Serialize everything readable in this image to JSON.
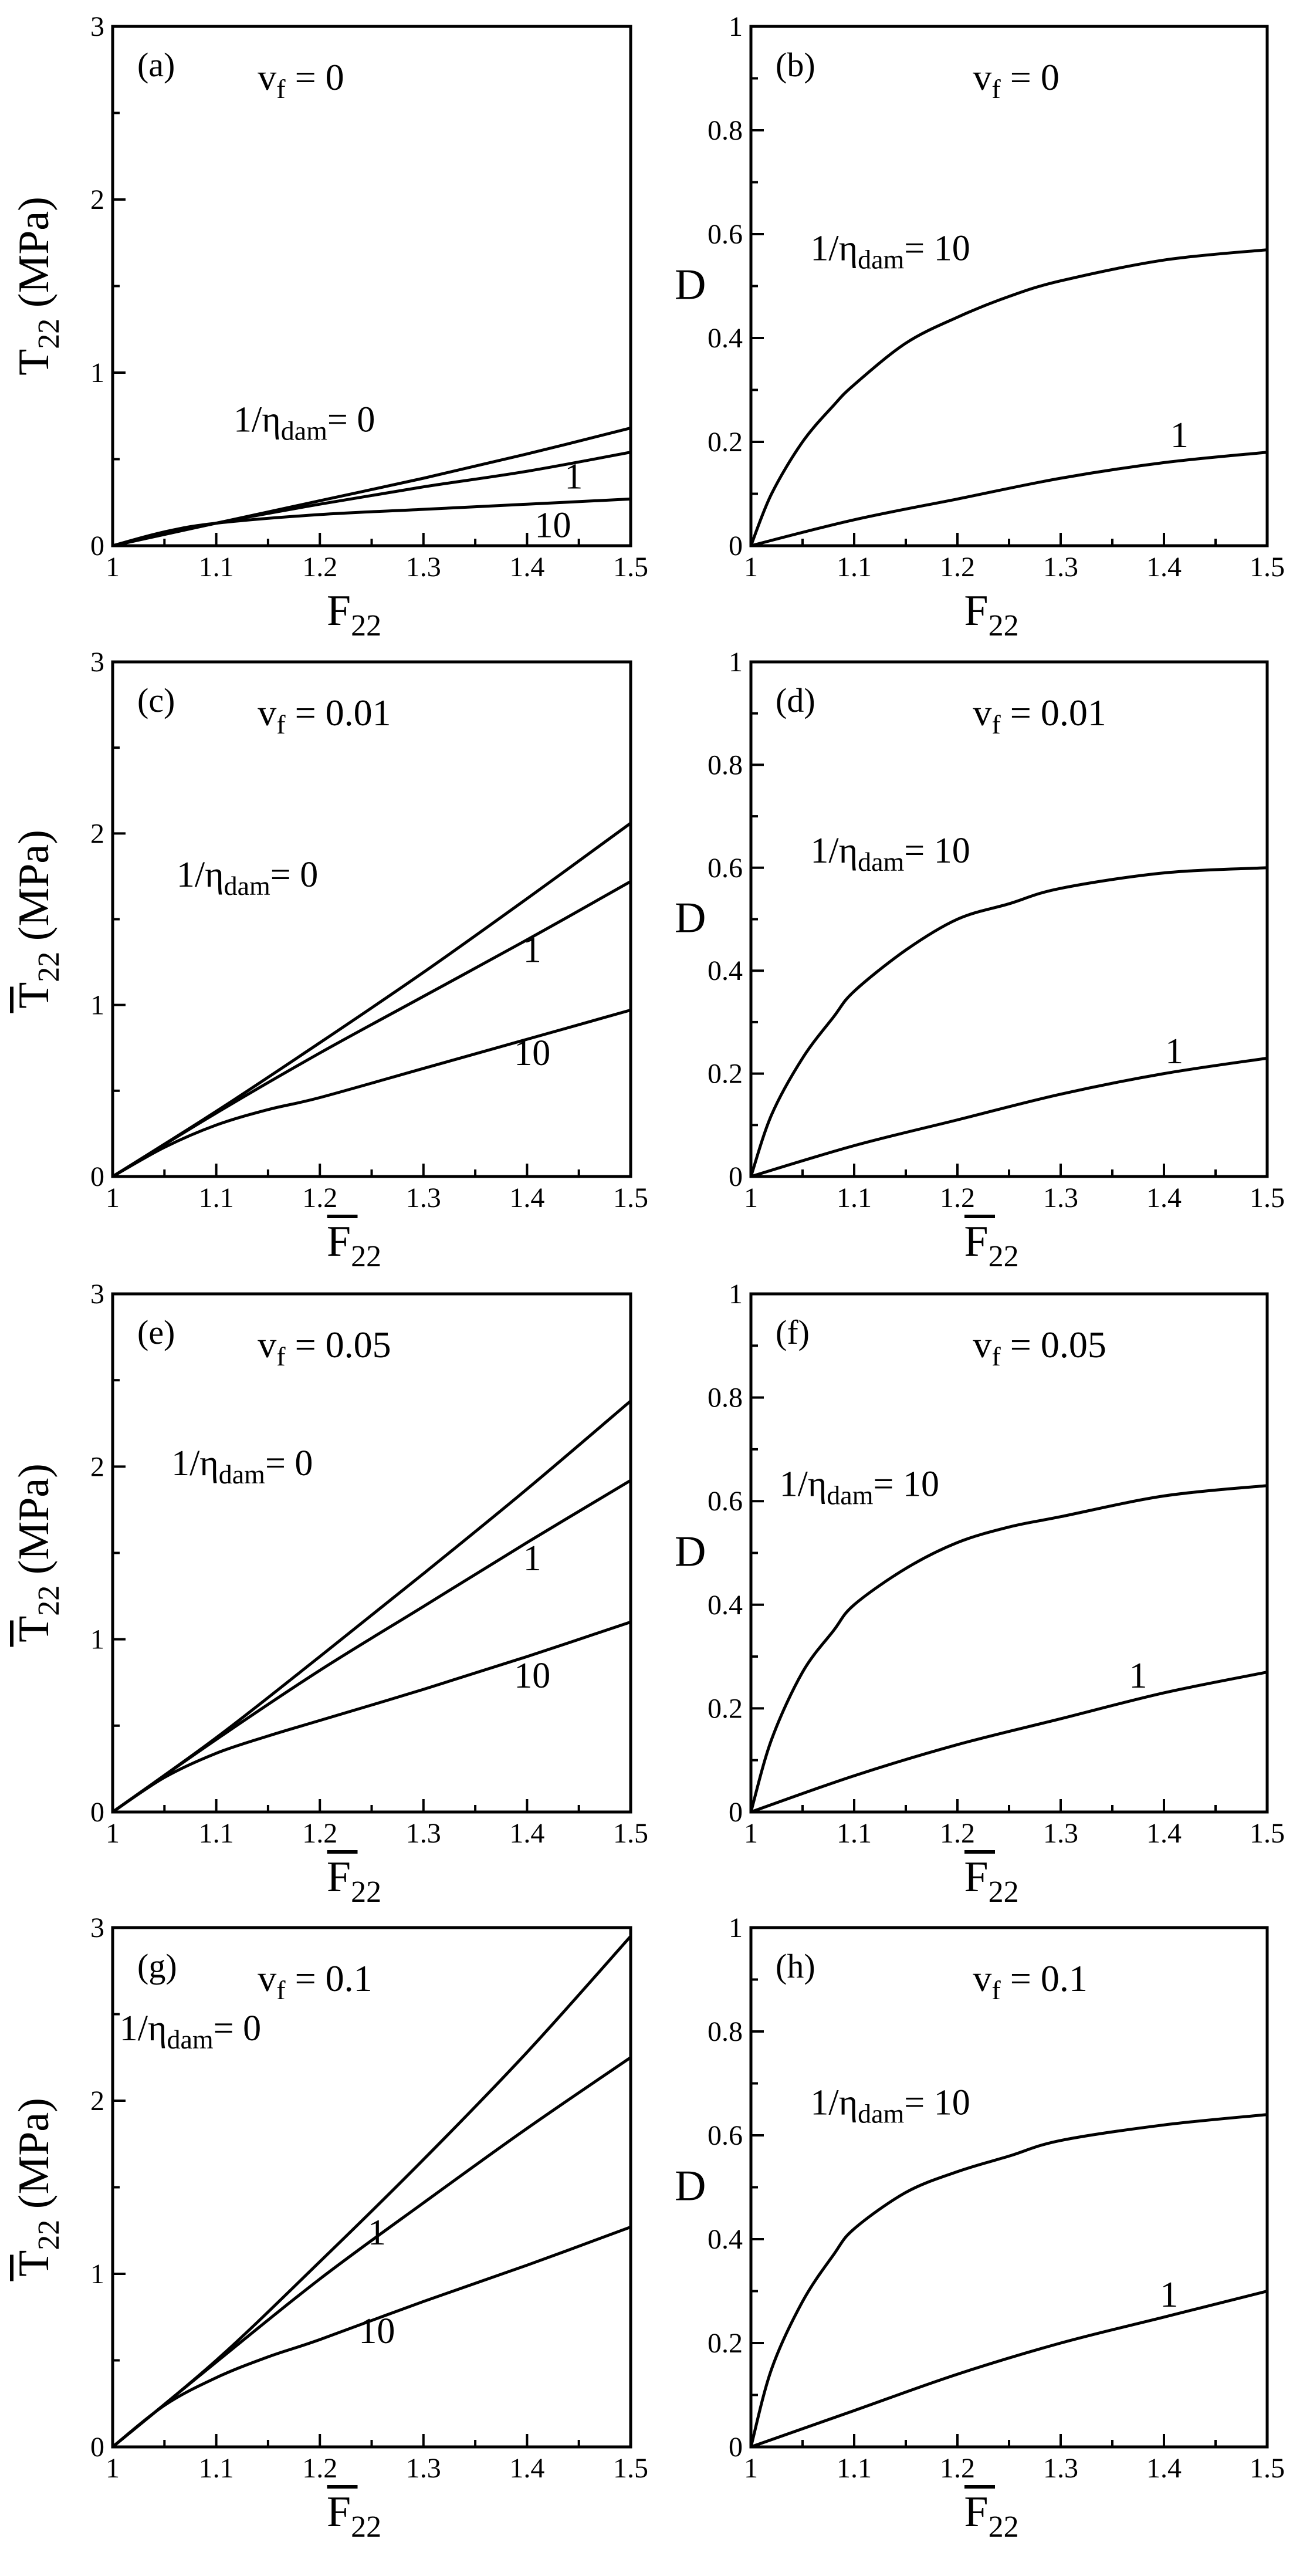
{
  "figure": {
    "stress_axis_unit": "(MPa)",
    "eta_label_prefix": "1/η",
    "eta_label_sub": "dam",
    "eta_label_suffix": "= "
  },
  "chart_data": [
    {
      "type": "line",
      "panel": "(a)",
      "vf_text": "v",
      "vf_sub": "f",
      "vf_value": "= 0",
      "xlabel": "F",
      "xlabel_sub": "22",
      "xlabel_overbar": false,
      "ylabel": "T",
      "ylabel_sub": "22",
      "ylabel_unit": "(MPa)",
      "ylabel_overbar": false,
      "xlim": [
        1,
        1.5
      ],
      "ylim": [
        0,
        3
      ],
      "xticks": [
        "1",
        "1.1",
        "1.2",
        "1.3",
        "1.4",
        "1.5"
      ],
      "yticks": [
        "0",
        "1",
        "2",
        "3"
      ],
      "series": [
        {
          "name": "1/ηdam = 0",
          "label": "0",
          "label_full": true,
          "x": [
            1,
            1.1,
            1.2,
            1.3,
            1.4,
            1.5
          ],
          "y": [
            0,
            0.13,
            0.26,
            0.39,
            0.53,
            0.68
          ]
        },
        {
          "name": "1/ηdam = 1",
          "label": "1",
          "label_full": false,
          "x": [
            1,
            1.1,
            1.2,
            1.3,
            1.4,
            1.5
          ],
          "y": [
            0,
            0.13,
            0.24,
            0.34,
            0.43,
            0.54
          ]
        },
        {
          "name": "1/ηdam = 10",
          "label": "10",
          "label_full": false,
          "x": [
            1,
            1.05,
            1.1,
            1.2,
            1.3,
            1.4,
            1.5
          ],
          "y": [
            0,
            0.08,
            0.13,
            0.18,
            0.21,
            0.24,
            0.27
          ]
        }
      ]
    },
    {
      "type": "line",
      "panel": "(b)",
      "vf_text": "v",
      "vf_sub": "f",
      "vf_value": "= 0",
      "xlabel": "F",
      "xlabel_sub": "22",
      "xlabel_overbar": false,
      "ylabel": "D",
      "ylabel_sub": "",
      "ylabel_unit": "",
      "ylabel_overbar": false,
      "xlim": [
        1,
        1.5
      ],
      "ylim": [
        0,
        1
      ],
      "xticks": [
        "1",
        "1.1",
        "1.2",
        "1.3",
        "1.4",
        "1.5"
      ],
      "yticks": [
        "0",
        "0.2",
        "0.4",
        "0.6",
        "0.8",
        "1"
      ],
      "series": [
        {
          "name": "1/ηdam = 10",
          "label": "10",
          "label_full": true,
          "x": [
            1,
            1.02,
            1.05,
            1.08,
            1.1,
            1.15,
            1.2,
            1.25,
            1.3,
            1.4,
            1.5
          ],
          "y": [
            0,
            0.1,
            0.2,
            0.27,
            0.31,
            0.39,
            0.44,
            0.48,
            0.51,
            0.55,
            0.57
          ]
        },
        {
          "name": "1/ηdam = 1",
          "label": "1",
          "label_full": false,
          "x": [
            1,
            1.1,
            1.2,
            1.3,
            1.4,
            1.5
          ],
          "y": [
            0,
            0.05,
            0.09,
            0.13,
            0.16,
            0.18
          ]
        }
      ]
    },
    {
      "type": "line",
      "panel": "(c)",
      "vf_text": "v",
      "vf_sub": "f",
      "vf_value": "= 0.01",
      "xlabel": "F",
      "xlabel_sub": "22",
      "xlabel_overbar": true,
      "ylabel": "T",
      "ylabel_sub": "22",
      "ylabel_unit": "(MPa)",
      "ylabel_overbar": true,
      "xlim": [
        1,
        1.5
      ],
      "ylim": [
        0,
        3
      ],
      "xticks": [
        "1",
        "1.1",
        "1.2",
        "1.3",
        "1.4",
        "1.5"
      ],
      "yticks": [
        "0",
        "1",
        "2",
        "3"
      ],
      "series": [
        {
          "name": "1/ηdam = 0",
          "label": "0",
          "label_full": true,
          "x": [
            1,
            1.1,
            1.2,
            1.3,
            1.4,
            1.5
          ],
          "y": [
            0,
            0.38,
            0.78,
            1.19,
            1.62,
            2.06
          ]
        },
        {
          "name": "1/ηdam = 1",
          "label": "1",
          "label_full": false,
          "x": [
            1,
            1.1,
            1.2,
            1.3,
            1.4,
            1.5
          ],
          "y": [
            0,
            0.37,
            0.72,
            1.05,
            1.38,
            1.72
          ]
        },
        {
          "name": "1/ηdam = 10",
          "label": "10",
          "label_full": false,
          "x": [
            1,
            1.05,
            1.1,
            1.15,
            1.2,
            1.3,
            1.4,
            1.5
          ],
          "y": [
            0,
            0.17,
            0.3,
            0.39,
            0.46,
            0.63,
            0.8,
            0.97
          ]
        }
      ]
    },
    {
      "type": "line",
      "panel": "(d)",
      "vf_text": "v",
      "vf_sub": "f",
      "vf_value": "= 0.01",
      "xlabel": "F",
      "xlabel_sub": "22",
      "xlabel_overbar": true,
      "ylabel": "D",
      "ylabel_sub": "",
      "ylabel_unit": "",
      "ylabel_overbar": false,
      "xlim": [
        1,
        1.5
      ],
      "ylim": [
        0,
        1
      ],
      "xticks": [
        "1",
        "1.1",
        "1.2",
        "1.3",
        "1.4",
        "1.5"
      ],
      "yticks": [
        "0",
        "0.2",
        "0.4",
        "0.6",
        "0.8",
        "1"
      ],
      "series": [
        {
          "name": "1/ηdam = 10",
          "label": "10",
          "label_full": true,
          "x": [
            1,
            1.02,
            1.05,
            1.08,
            1.1,
            1.15,
            1.2,
            1.25,
            1.3,
            1.4,
            1.5
          ],
          "y": [
            0,
            0.12,
            0.23,
            0.31,
            0.36,
            0.44,
            0.5,
            0.53,
            0.56,
            0.59,
            0.6
          ]
        },
        {
          "name": "1/ηdam = 1",
          "label": "1",
          "label_full": false,
          "x": [
            1,
            1.1,
            1.2,
            1.3,
            1.4,
            1.5
          ],
          "y": [
            0,
            0.06,
            0.11,
            0.16,
            0.2,
            0.23
          ]
        }
      ]
    },
    {
      "type": "line",
      "panel": "(e)",
      "vf_text": "v",
      "vf_sub": "f",
      "vf_value": "= 0.05",
      "xlabel": "F",
      "xlabel_sub": "22",
      "xlabel_overbar": true,
      "ylabel": "T",
      "ylabel_sub": "22",
      "ylabel_unit": "(MPa)",
      "ylabel_overbar": true,
      "xlim": [
        1,
        1.5
      ],
      "ylim": [
        0,
        3
      ],
      "xticks": [
        "1",
        "1.1",
        "1.2",
        "1.3",
        "1.4",
        "1.5"
      ],
      "yticks": [
        "0",
        "1",
        "2",
        "3"
      ],
      "series": [
        {
          "name": "1/ηdam = 0",
          "label": "0",
          "label_full": true,
          "x": [
            1,
            1.1,
            1.2,
            1.3,
            1.4,
            1.5
          ],
          "y": [
            0,
            0.43,
            0.9,
            1.38,
            1.87,
            2.38
          ]
        },
        {
          "name": "1/ηdam = 1",
          "label": "1",
          "label_full": false,
          "x": [
            1,
            1.1,
            1.2,
            1.3,
            1.4,
            1.5
          ],
          "y": [
            0,
            0.42,
            0.82,
            1.19,
            1.56,
            1.92
          ]
        },
        {
          "name": "1/ηdam = 10",
          "label": "10",
          "label_full": false,
          "x": [
            1,
            1.05,
            1.1,
            1.15,
            1.2,
            1.3,
            1.4,
            1.5
          ],
          "y": [
            0,
            0.2,
            0.34,
            0.44,
            0.53,
            0.71,
            0.9,
            1.1
          ]
        }
      ]
    },
    {
      "type": "line",
      "panel": "(f)",
      "vf_text": "v",
      "vf_sub": "f",
      "vf_value": "= 0.05",
      "xlabel": "F",
      "xlabel_sub": "22",
      "xlabel_overbar": true,
      "ylabel": "D",
      "ylabel_sub": "",
      "ylabel_unit": "",
      "ylabel_overbar": false,
      "xlim": [
        1,
        1.5
      ],
      "ylim": [
        0,
        1
      ],
      "xticks": [
        "1",
        "1.1",
        "1.2",
        "1.3",
        "1.4",
        "1.5"
      ],
      "yticks": [
        "0",
        "0.2",
        "0.4",
        "0.6",
        "0.8",
        "1"
      ],
      "series": [
        {
          "name": "1/ηdam = 10",
          "label": "10",
          "label_full": true,
          "x": [
            1,
            1.02,
            1.05,
            1.08,
            1.1,
            1.15,
            1.2,
            1.25,
            1.3,
            1.4,
            1.5
          ],
          "y": [
            0,
            0.14,
            0.27,
            0.35,
            0.4,
            0.47,
            0.52,
            0.55,
            0.57,
            0.61,
            0.63
          ]
        },
        {
          "name": "1/ηdam = 1",
          "label": "1",
          "label_full": false,
          "x": [
            1,
            1.1,
            1.2,
            1.3,
            1.4,
            1.5
          ],
          "y": [
            0,
            0.07,
            0.13,
            0.18,
            0.23,
            0.27
          ]
        }
      ]
    },
    {
      "type": "line",
      "panel": "(g)",
      "vf_text": "v",
      "vf_sub": "f",
      "vf_value": "= 0.1",
      "xlabel": "F",
      "xlabel_sub": "22",
      "xlabel_overbar": true,
      "ylabel": "T",
      "ylabel_sub": "22",
      "ylabel_unit": "(MPa)",
      "ylabel_overbar": true,
      "xlim": [
        1,
        1.5
      ],
      "ylim": [
        0,
        3
      ],
      "xticks": [
        "1",
        "1.1",
        "1.2",
        "1.3",
        "1.4",
        "1.5"
      ],
      "yticks": [
        "0",
        "1",
        "2",
        "3"
      ],
      "series": [
        {
          "name": "1/ηdam = 0",
          "label": "0",
          "label_full": true,
          "x": [
            1,
            1.1,
            1.2,
            1.3,
            1.4,
            1.5
          ],
          "y": [
            0,
            0.5,
            1.07,
            1.66,
            2.28,
            2.95
          ]
        },
        {
          "name": "1/ηdam = 1",
          "label": "1",
          "label_full": false,
          "x": [
            1,
            1.1,
            1.2,
            1.3,
            1.4,
            1.5
          ],
          "y": [
            0,
            0.49,
            0.97,
            1.41,
            1.84,
            2.25
          ]
        },
        {
          "name": "1/ηdam = 10",
          "label": "10",
          "label_full": false,
          "x": [
            1,
            1.05,
            1.1,
            1.15,
            1.2,
            1.3,
            1.4,
            1.5
          ],
          "y": [
            0,
            0.24,
            0.4,
            0.52,
            0.62,
            0.84,
            1.05,
            1.27
          ]
        }
      ]
    },
    {
      "type": "line",
      "panel": "(h)",
      "vf_text": "v",
      "vf_sub": "f",
      "vf_value": "= 0.1",
      "xlabel": "F",
      "xlabel_sub": "22",
      "xlabel_overbar": true,
      "ylabel": "D",
      "ylabel_sub": "",
      "ylabel_unit": "",
      "ylabel_overbar": false,
      "xlim": [
        1,
        1.5
      ],
      "ylim": [
        0,
        1
      ],
      "xticks": [
        "1",
        "1.1",
        "1.2",
        "1.3",
        "1.4",
        "1.5"
      ],
      "yticks": [
        "0",
        "0.2",
        "0.4",
        "0.6",
        "0.8",
        "1"
      ],
      "series": [
        {
          "name": "1/ηdam = 10",
          "label": "10",
          "label_full": true,
          "x": [
            1,
            1.02,
            1.05,
            1.08,
            1.1,
            1.15,
            1.2,
            1.25,
            1.3,
            1.4,
            1.5
          ],
          "y": [
            0,
            0.15,
            0.28,
            0.37,
            0.42,
            0.49,
            0.53,
            0.56,
            0.59,
            0.62,
            0.64
          ]
        },
        {
          "name": "1/ηdam = 1",
          "label": "1",
          "label_full": false,
          "x": [
            1,
            1.1,
            1.2,
            1.3,
            1.4,
            1.5
          ],
          "y": [
            0,
            0.07,
            0.14,
            0.2,
            0.25,
            0.3
          ]
        }
      ]
    }
  ]
}
